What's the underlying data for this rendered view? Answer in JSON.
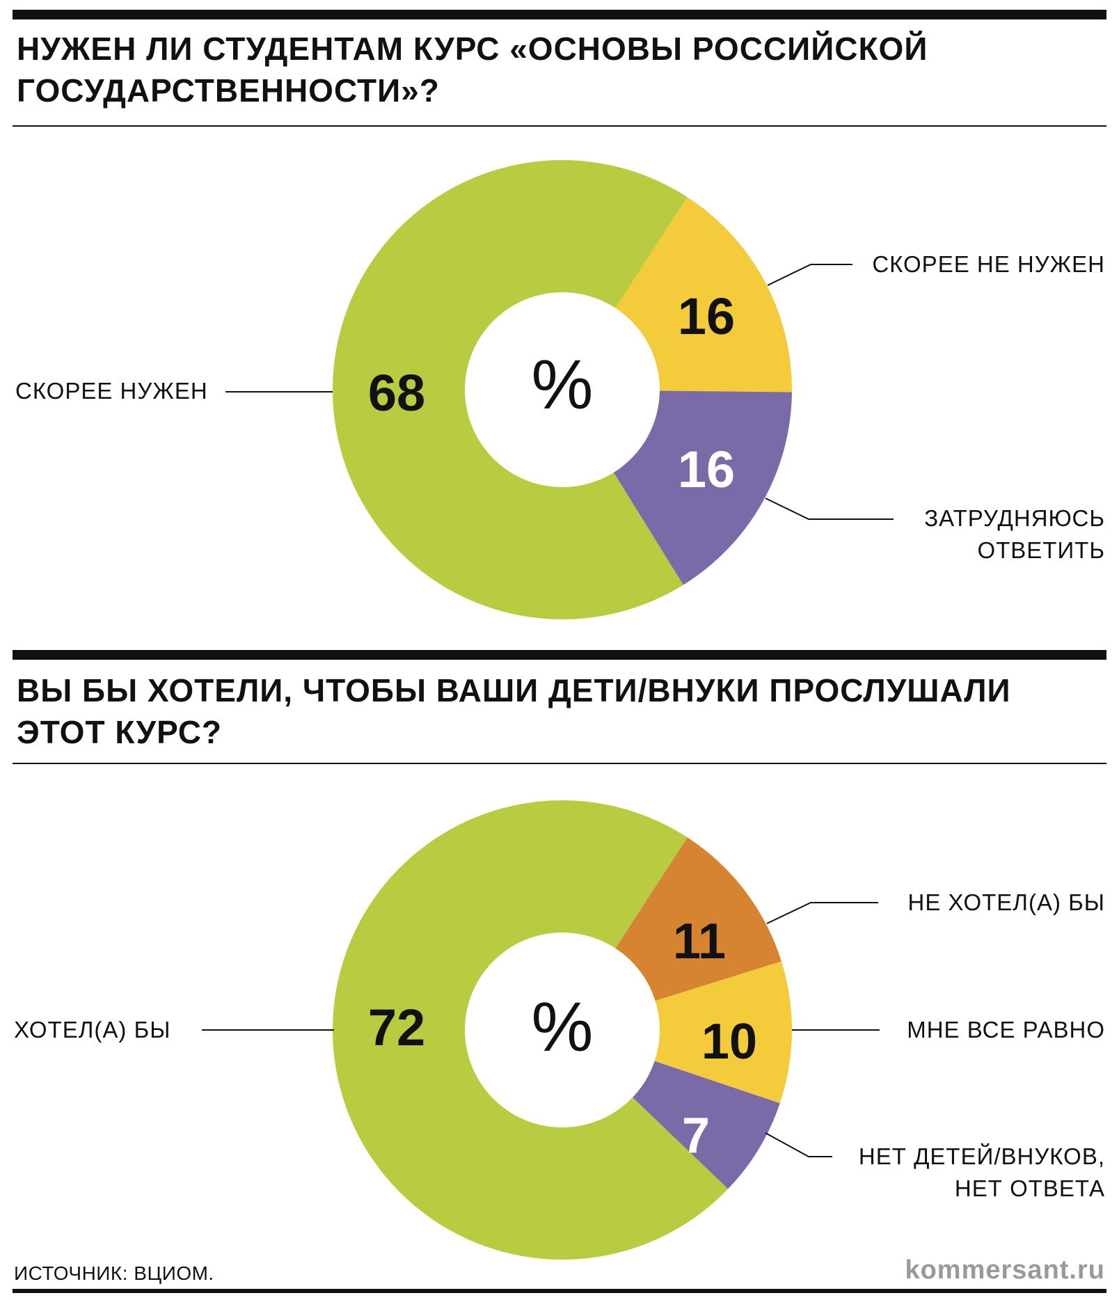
{
  "chart_data": [
    {
      "type": "donut",
      "title": "НУЖЕН ЛИ СТУДЕНТАМ КУРС «ОСНОВЫ РОССИЙСКОЙ ГОСУДАРСТВЕННОСТИ»?",
      "unit": "%",
      "slices": [
        {
          "label": "СКОРЕЕ НУЖЕН",
          "value": 68,
          "color": "#b9cb41"
        },
        {
          "label": "СКОРЕЕ НЕ НУЖЕН",
          "value": 16,
          "color": "#f4cb3b"
        },
        {
          "label": "ЗАТРУДНЯЮСЬ ОТВЕТИТЬ",
          "value": 16,
          "color": "#7b6aa8"
        }
      ]
    },
    {
      "type": "donut",
      "title": "ВЫ БЫ ХОТЕЛИ, ЧТОБЫ ВАШИ ДЕТИ/ВНУКИ ПРОСЛУШАЛИ ЭТОТ КУРС?",
      "unit": "%",
      "slices": [
        {
          "label": "ХОТЕЛ(А) БЫ",
          "value": 72,
          "color": "#b9cb41"
        },
        {
          "label": "НЕ ХОТЕЛ(А) БЫ",
          "value": 11,
          "color": "#d68332"
        },
        {
          "label": "МНЕ ВСЕ РАВНО",
          "value": 10,
          "color": "#f4cb3b"
        },
        {
          "label": "НЕТ ДЕТЕЙ/ВНУКОВ, НЕТ ОТВЕТА",
          "value": 7,
          "color": "#7b6aa8"
        }
      ]
    }
  ],
  "footer": {
    "source": "ИСТОЧНИК: ВЦИОМ.",
    "brand": "kommersant.ru"
  }
}
